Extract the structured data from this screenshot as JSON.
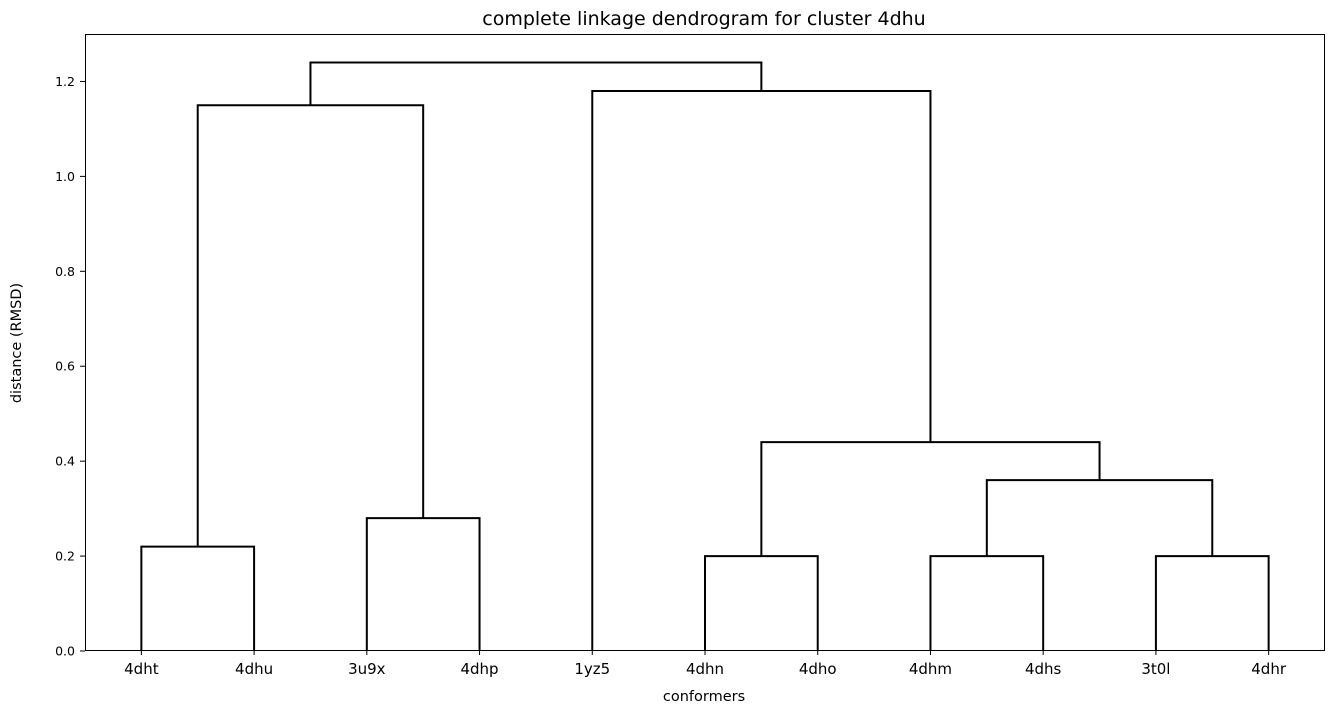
{
  "chart_data": {
    "type": "dendrogram",
    "title": "complete linkage dendrogram for cluster 4dhu",
    "xlabel": "conformers",
    "ylabel": "distance (RMSD)",
    "ylim": [
      0,
      1.3
    ],
    "yticks": [
      "0.0",
      "0.2",
      "0.4",
      "0.6",
      "0.8",
      "1.0",
      "1.2"
    ],
    "grid": false,
    "line_color": "#000000",
    "leaves": [
      "4dht",
      "4dhu",
      "3u9x",
      "4dhp",
      "1yz5",
      "4dhn",
      "4dho",
      "4dhm",
      "4dhs",
      "3t0l",
      "4dhr"
    ],
    "merges": [
      {
        "left": "4dht",
        "right": "4dhu",
        "height": 0.22
      },
      {
        "left": "3u9x",
        "right": "4dhp",
        "height": 0.28
      },
      {
        "left": "4dhn",
        "right": "4dho",
        "height": 0.2
      },
      {
        "left": "4dhm",
        "right": "4dhs",
        "height": 0.2
      },
      {
        "left": "3t0l",
        "right": "4dhr",
        "height": 0.2
      },
      {
        "left": "(4dhm,4dhs)",
        "right": "(3t0l,4dhr)",
        "height": 0.36
      },
      {
        "left": "(4dhn,4dho)",
        "right": "(4dhm,4dhs,3t0l,4dhr)",
        "height": 0.44
      },
      {
        "left": "(4dht,4dhu)",
        "right": "(3u9x,4dhp)",
        "height": 1.15
      },
      {
        "left": "1yz5",
        "right": "(4dhn,4dho,4dhm,4dhs,3t0l,4dhr)",
        "height": 1.18
      },
      {
        "left": "(4dht,4dhu,3u9x,4dhp)",
        "right": "(1yz5,4dhn,4dho,4dhm,4dhs,3t0l,4dhr)",
        "height": 1.24
      }
    ]
  }
}
